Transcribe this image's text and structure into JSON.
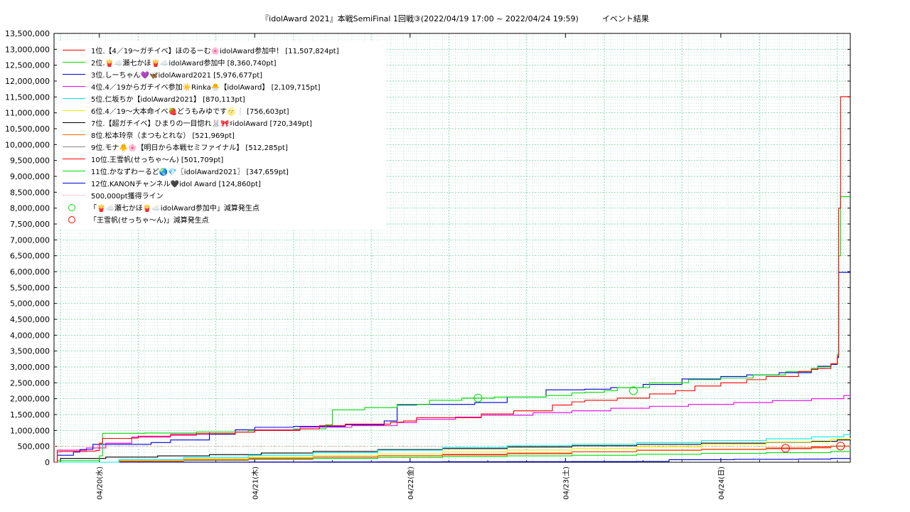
{
  "chart_data": {
    "type": "line",
    "title": "『idolAward 2021』本戦SemiFinal 1回戦③(2022/04/19 17:00 ~ 2022/04/24 19:59)　　　イベント結果",
    "xlabel": "",
    "ylabel": "",
    "ylim": [
      0,
      13500000
    ],
    "y_ticks": [
      0,
      500000,
      1000000,
      1500000,
      2000000,
      2500000,
      3000000,
      3500000,
      4000000,
      4500000,
      5000000,
      5500000,
      6000000,
      6500000,
      7000000,
      7500000,
      8000000,
      8500000,
      9000000,
      9500000,
      10000000,
      10500000,
      11000000,
      11500000,
      12000000,
      12500000,
      13000000,
      13500000
    ],
    "y_tick_labels": [
      "0",
      "500,000",
      "1,000,000",
      "1,500,000",
      "2,000,000",
      "2,500,000",
      "3,000,000",
      "3,500,000",
      "4,000,000",
      "4,500,000",
      "5,000,000",
      "5,500,000",
      "6,000,000",
      "6,500,000",
      "7,000,000",
      "7,500,000",
      "8,000,000",
      "8,500,000",
      "9,000,000",
      "9,500,000",
      "10,000,000",
      "10,500,000",
      "11,000,000",
      "11,500,000",
      "12,000,000",
      "12,500,000",
      "13,000,000",
      "13,500,000"
    ],
    "x_unit": "hours since 04/19 17:00",
    "xlim": [
      0,
      123
    ],
    "x_ticks": [
      7,
      31,
      55,
      79,
      103
    ],
    "x_tick_labels": [
      "04/20(水)",
      "04/21(木)",
      "04/22(金)",
      "04/23(土)",
      "04/24(日)"
    ],
    "grid": true,
    "legend_position": "top-left",
    "series": [
      {
        "name": "1位.【4／19〜ガチイベ】ほのるーむ🌸idolAward参加中！ [11,507,824pt]",
        "color": "#ff0000",
        "x": [
          0,
          0.5,
          1,
          5,
          6.5,
          7,
          7.5,
          12,
          13,
          18,
          22,
          28,
          31,
          38,
          41,
          45,
          52,
          54,
          56,
          66,
          71,
          77,
          80,
          82,
          87,
          92,
          96,
          99,
          103,
          107,
          110,
          115,
          117,
          118,
          120,
          121,
          121.2,
          121.5,
          123
        ],
        "y": [
          0,
          330000,
          340000,
          350000,
          370000,
          600000,
          750000,
          760000,
          820000,
          850000,
          900000,
          950000,
          1000000,
          1050000,
          1150000,
          1200000,
          1260000,
          1300000,
          1400000,
          1520000,
          1620000,
          1800000,
          1900000,
          1950000,
          2020000,
          2150000,
          2250000,
          2400000,
          2500000,
          2600000,
          2700000,
          2860000,
          2920000,
          2950000,
          3100000,
          3350000,
          8000000,
          11507824,
          11507824
        ]
      },
      {
        "name": "2位.🍟☁️瀬七かほ🍟☁️idolAward参加中 [8,360,740pt]",
        "color": "#00dd00",
        "x": [
          0,
          0.5,
          7,
          7.5,
          14,
          22,
          30,
          37,
          42,
          43,
          48,
          53,
          58,
          63,
          68,
          76,
          80,
          82,
          85,
          87,
          92,
          98,
          103,
          108,
          113,
          117,
          118,
          120,
          121,
          121.2,
          121.5,
          123
        ],
        "y": [
          0,
          50000,
          200000,
          910000,
          920000,
          950000,
          1000000,
          1050000,
          1180000,
          1650000,
          1720000,
          1820000,
          1950000,
          2020000,
          2050000,
          2100000,
          2180000,
          2200000,
          2250000,
          2350000,
          2500000,
          2600000,
          2650000,
          2750000,
          2850000,
          2950000,
          3000000,
          3100000,
          3400000,
          6500000,
          8360740,
          8360740
        ]
      },
      {
        "name": "3位.しーちゃん💜🦋idolAward2021 [5,976,677pt]",
        "color": "#0000dd",
        "x": [
          0,
          0.5,
          3,
          4,
          6,
          15,
          18,
          24,
          28,
          31,
          37,
          45,
          51,
          53,
          56,
          65,
          70,
          76,
          82,
          86,
          91,
          97,
          103,
          107,
          112,
          117,
          118,
          120,
          121,
          121.2,
          123
        ],
        "y": [
          0,
          220000,
          320000,
          400000,
          560000,
          620000,
          700000,
          880000,
          1020000,
          1100000,
          1130000,
          1180000,
          1300000,
          1800000,
          1820000,
          1880000,
          2050000,
          2280000,
          2300000,
          2350000,
          2450000,
          2620000,
          2700000,
          2750000,
          2820000,
          2950000,
          3020000,
          3080000,
          3300000,
          5976677,
          5976677
        ]
      },
      {
        "name": "4位.4／19からガチイベ参加☀️Rinka🐣【idolAward】 [2,109,715pt]",
        "color": "#ee00ee",
        "x": [
          0,
          0.5,
          5,
          8,
          12,
          18,
          24,
          31,
          38,
          46,
          53,
          56,
          62,
          66,
          74,
          80,
          86,
          92,
          98,
          105,
          111,
          117,
          122,
          123
        ],
        "y": [
          0,
          380000,
          450000,
          600000,
          790000,
          880000,
          950000,
          1020000,
          1100000,
          1150000,
          1250000,
          1350000,
          1420000,
          1480000,
          1560000,
          1620000,
          1700000,
          1760000,
          1820000,
          1880000,
          1940000,
          2000000,
          2100000,
          2109715
        ]
      },
      {
        "name": "5位.仁坂ちか【idolAward2021】 [870,113pt]",
        "color": "#00eeee",
        "x": [
          0,
          10,
          20,
          30,
          40,
          50,
          60,
          70,
          80,
          90,
          100,
          110,
          117,
          122,
          123
        ],
        "y": [
          0,
          80000,
          150000,
          220000,
          300000,
          380000,
          460000,
          520000,
          560000,
          620000,
          680000,
          740000,
          800000,
          870000,
          870113
        ]
      },
      {
        "name": "6位.4／19〜大本命イベ🍓どうもみゆです🌝❕ [756,603pt]",
        "color": "#eeee00",
        "x": [
          0,
          10,
          20,
          30,
          40,
          50,
          60,
          70,
          80,
          90,
          100,
          110,
          120,
          123
        ],
        "y": [
          0,
          60000,
          110000,
          160000,
          210000,
          260000,
          330000,
          380000,
          430000,
          480000,
          560000,
          640000,
          730000,
          756603
        ]
      },
      {
        "name": "7位.【超ガチイベ】ひまりの一目惚れ🐰🎀♯idolAward [720,349pt]",
        "color": "#000000",
        "x": [
          0,
          1,
          8,
          16,
          24,
          32,
          40,
          50,
          60,
          70,
          80,
          90,
          100,
          110,
          117,
          121,
          123
        ],
        "y": [
          0,
          120000,
          160000,
          200000,
          240000,
          290000,
          340000,
          400000,
          430000,
          480000,
          520000,
          560000,
          600000,
          630000,
          660000,
          700000,
          720349
        ]
      },
      {
        "name": "8位.松本玲奈（まつもとれな） [521,969pt]",
        "color": "#ff6600",
        "x": [
          0,
          10,
          20,
          30,
          40,
          50,
          60,
          70,
          80,
          90,
          100,
          110,
          120,
          123
        ],
        "y": [
          0,
          40000,
          80000,
          120000,
          160000,
          200000,
          250000,
          290000,
          330000,
          370000,
          410000,
          450000,
          510000,
          521969
        ]
      },
      {
        "name": "9位.モナ🐥🌸【明日から本戦セミファイナル】 [512,285pt]",
        "color": "#888888",
        "x": [
          0,
          10,
          20,
          30,
          40,
          50,
          60,
          70,
          80,
          90,
          100,
          110,
          120,
          123
        ],
        "y": [
          0,
          50000,
          90000,
          130000,
          170000,
          210000,
          250000,
          290000,
          330000,
          370000,
          410000,
          450000,
          500000,
          512285
        ]
      },
      {
        "name": "10位.王雪帆(せっちゃ〜ん) [501,709pt]",
        "color": "#ff0000",
        "x": [
          0,
          10,
          20,
          30,
          40,
          50,
          60,
          70,
          80,
          90,
          100,
          110,
          117,
          120,
          123
        ],
        "y": [
          0,
          30000,
          70000,
          110000,
          160000,
          200000,
          230000,
          270000,
          330000,
          380000,
          400000,
          430000,
          480000,
          500000,
          501709
        ]
      },
      {
        "name": "11位.かなずわーるど🌏💎〖idolAward2021〗 [347,659pt]",
        "color": "#00dd00",
        "x": [
          0,
          10,
          20,
          30,
          40,
          50,
          60,
          70,
          80,
          90,
          100,
          110,
          120,
          123
        ],
        "y": [
          0,
          30000,
          60000,
          90000,
          120000,
          150000,
          180000,
          200000,
          220000,
          250000,
          280000,
          300000,
          340000,
          347659
        ]
      },
      {
        "name": "12位.KANONチャンネル🖤idol Award [124,860pt]",
        "color": "#0000dd",
        "x": [
          0,
          10,
          20,
          30,
          40,
          50,
          60,
          70,
          80,
          90,
          95,
          105,
          115,
          120,
          123
        ],
        "y": [
          0,
          2000,
          5000,
          8000,
          10000,
          12000,
          15000,
          18000,
          20000,
          25000,
          80000,
          90000,
          100000,
          120000,
          124860
        ]
      }
    ],
    "reference_line": {
      "name": "500,000pt獲得ライン",
      "y": 500000,
      "color": "#ff9999"
    },
    "markers": [
      {
        "name": "「🍟☁️瀬七かほ🍟☁️idolAward参加中」減算発生点",
        "color": "#00dd00",
        "points": [
          [
            65.5,
            2020000
          ],
          [
            89.5,
            2250000
          ]
        ]
      },
      {
        "name": "「王雪帆(せっちゃ〜ん)」減算発生点",
        "color": "#ff0000",
        "points": [
          [
            113,
            440000
          ],
          [
            121.5,
            510000
          ]
        ]
      }
    ]
  }
}
